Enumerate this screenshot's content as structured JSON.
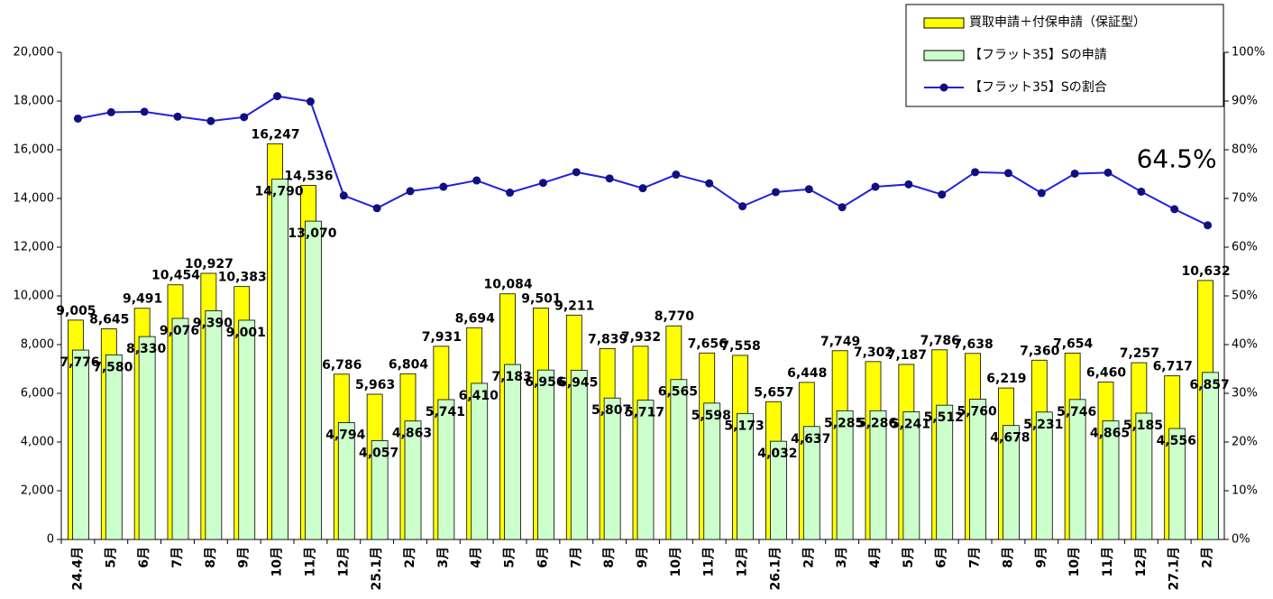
{
  "chart_data": {
    "type": "bar_line",
    "categories": [
      "24.4月",
      "5月",
      "6月",
      "7月",
      "8月",
      "9月",
      "10月",
      "11月",
      "12月",
      "25.1月",
      "2月",
      "3月",
      "4月",
      "5月",
      "6月",
      "7月",
      "8月",
      "9月",
      "10月",
      "11月",
      "12月",
      "26.1月",
      "2月",
      "3月",
      "4月",
      "5月",
      "6月",
      "7月",
      "8月",
      "9月",
      "10月",
      "11月",
      "12月",
      "27.1月",
      "2月"
    ],
    "series": [
      {
        "name": "買取申請＋付保申請（保証型）",
        "color": "#ffff00",
        "type": "bar",
        "values": [
          9005,
          8645,
          9491,
          10454,
          10927,
          10383,
          16247,
          14536,
          6786,
          5963,
          6804,
          7931,
          8694,
          10084,
          9501,
          9211,
          7839,
          7932,
          8770,
          7656,
          7558,
          5657,
          6448,
          7749,
          7302,
          7187,
          7786,
          7638,
          6219,
          7360,
          7654,
          6460,
          7257,
          6717,
          10632
        ],
        "value_labels": [
          "9,005",
          "8,645",
          "9,491",
          "10,454",
          "10,927",
          "10,383",
          "16,247",
          "14,536",
          "6,786",
          "5,963",
          "6,804",
          "7,931",
          "8,694",
          "10,084",
          "9,501",
          "9,211",
          "7,839",
          "7,932",
          "8,770",
          "7,656",
          "7,558",
          "5,657",
          "6,448",
          "7,749",
          "7,302",
          "7,187",
          "7,786",
          "7,638",
          "6,219",
          "7,360",
          "7,654",
          "6,460",
          "7,257",
          "6,717",
          "10,632"
        ]
      },
      {
        "name": "【フラット35】Sの申請",
        "color": "#ccffcc",
        "type": "bar",
        "values": [
          7776,
          7580,
          8330,
          9076,
          9390,
          9001,
          14790,
          13070,
          4794,
          4057,
          4863,
          5741,
          6410,
          7183,
          6956,
          6945,
          5807,
          5717,
          6565,
          5598,
          5173,
          4032,
          4637,
          5285,
          5286,
          5241,
          5512,
          5760,
          4678,
          5231,
          5746,
          4865,
          5185,
          4556,
          6857
        ],
        "value_labels": [
          "7,776",
          "7,580",
          "8,330",
          "9,076",
          "9,390",
          "9,001",
          "14,790",
          "13,070",
          "4,794",
          "4,057",
          "4,863",
          "5,741",
          "6,410",
          "7,183",
          "6,956",
          "6,945",
          "5,807",
          "5,717",
          "6,565",
          "5,598",
          "5,173",
          "4,032",
          "4,637",
          "5,285",
          "5,286",
          "5,241",
          "5,512",
          "5,760",
          "4,678",
          "5,231",
          "5,746",
          "4,865",
          "5,185",
          "4,556",
          "6,857"
        ]
      },
      {
        "name": "【フラット35】Sの割合",
        "color": "#2020e0",
        "type": "line",
        "axis": "y2",
        "values": [
          86.4,
          87.7,
          87.8,
          86.8,
          85.9,
          86.7,
          91.0,
          89.9,
          70.6,
          68.0,
          71.5,
          72.4,
          73.7,
          71.2,
          73.2,
          75.4,
          74.1,
          72.1,
          74.9,
          73.1,
          68.4,
          71.3,
          71.9,
          68.2,
          72.4,
          72.9,
          70.8,
          75.4,
          75.2,
          71.1,
          75.1,
          75.3,
          71.4,
          67.8,
          64.5
        ],
        "value_labels": [
          null,
          null,
          null,
          null,
          null,
          null,
          null,
          null,
          null,
          null,
          null,
          null,
          null,
          null,
          null,
          null,
          null,
          null,
          null,
          null,
          null,
          null,
          null,
          null,
          null,
          null,
          null,
          null,
          null,
          null,
          null,
          null,
          null,
          null,
          "64.5%"
        ]
      }
    ],
    "ylim": [
      0,
      20000
    ],
    "yticks": [
      0,
      {
        "value": 2000,
        "label": "2,000"
      },
      {
        "value": 4000,
        "label": "4,000"
      },
      {
        "value": 6000,
        "label": "6,000"
      },
      {
        "value": 8000,
        "label": "8,000"
      },
      {
        "value": 10000,
        "label": "10,000"
      },
      {
        "value": 12000,
        "label": "12,000"
      },
      {
        "value": 14000,
        "label": "14,000"
      },
      {
        "value": 16000,
        "label": "16,000"
      },
      {
        "value": 18000,
        "label": "18,000"
      },
      {
        "value": 20000,
        "label": "20,000"
      }
    ],
    "y2lim": [
      0,
      100
    ],
    "y2ticks": [
      {
        "value": 0,
        "label": "0%"
      },
      {
        "value": 10,
        "label": "10%"
      },
      {
        "value": 20,
        "label": "20%"
      },
      {
        "value": 30,
        "label": "30%"
      },
      {
        "value": 40,
        "label": "40%"
      },
      {
        "value": 50,
        "label": "50%"
      },
      {
        "value": 60,
        "label": "60%"
      },
      {
        "value": 70,
        "label": "70%"
      },
      {
        "value": 80,
        "label": "80%"
      },
      {
        "value": 90,
        "label": "90%"
      },
      {
        "value": 100,
        "label": "100%"
      }
    ],
    "legend": "top-right"
  }
}
